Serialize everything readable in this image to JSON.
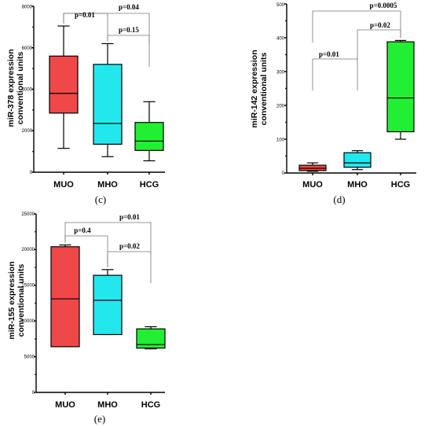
{
  "chart_data": [
    {
      "type": "box",
      "panel_label": "(c)",
      "ylabel_line1": "miR-378 expression",
      "ylabel_line2": "conventional units",
      "ylim": [
        0,
        8000
      ],
      "yticks": [
        "0",
        "2000",
        "4000",
        "6000",
        "8000"
      ],
      "categories": [
        "MUO",
        "MHO",
        "HCG"
      ],
      "colors": [
        "#f04848",
        "#22e8ee",
        "#22ee33"
      ],
      "boxes": [
        {
          "min": 1150,
          "q1": 2850,
          "median": 3800,
          "q3": 5600,
          "max": 7050
        },
        {
          "min": 750,
          "q1": 1350,
          "median": 2350,
          "q3": 5200,
          "max": 6200
        },
        {
          "min": 550,
          "q1": 1050,
          "median": 1500,
          "q3": 2400,
          "max": 3400
        }
      ],
      "comparisons": [
        {
          "from": 0,
          "to": 1,
          "label": "p=0.01"
        },
        {
          "from": 0,
          "to": 2,
          "label": "p=0.04"
        },
        {
          "from": 1,
          "to": 2,
          "label": "p=0.15"
        }
      ]
    },
    {
      "type": "box",
      "panel_label": "(d)",
      "ylabel_line1": "miR-142 expression",
      "ylabel_line2": "conventional units",
      "ylim": [
        0,
        500
      ],
      "yticks": [
        "0",
        "100",
        "200",
        "300",
        "400",
        "500"
      ],
      "categories": [
        "MUO",
        "MHO",
        "HCG"
      ],
      "colors": [
        "#f04848",
        "#22e8ee",
        "#22ee33"
      ],
      "boxes": [
        {
          "min": 5,
          "q1": 7,
          "median": 14,
          "q3": 23,
          "max": 30
        },
        {
          "min": 10,
          "q1": 17,
          "median": 30,
          "q3": 60,
          "max": 66
        },
        {
          "min": 100,
          "q1": 122,
          "median": 222,
          "q3": 388,
          "max": 392
        }
      ],
      "comparisons": [
        {
          "from": 0,
          "to": 1,
          "label": "p=0.01"
        },
        {
          "from": 0,
          "to": 2,
          "label": "p=0.0005"
        },
        {
          "from": 1,
          "to": 2,
          "label": "p=0.02"
        }
      ]
    },
    {
      "type": "box",
      "panel_label": "(e)",
      "ylabel_line1": "miR-155 expression",
      "ylabel_line2": "conventional units",
      "ylim": [
        0,
        25000
      ],
      "yticks": [
        "0",
        "5000",
        "10000",
        "15000",
        "20000",
        "25000"
      ],
      "categories": [
        "MUO",
        "MHO",
        "HCG"
      ],
      "colors": [
        "#f04848",
        "#22e8ee",
        "#22ee33"
      ],
      "boxes": [
        {
          "min": 6400,
          "q1": 6400,
          "median": 13100,
          "q3": 20400,
          "max": 20650
        },
        {
          "min": 8100,
          "q1": 8100,
          "median": 12900,
          "q3": 16400,
          "max": 17200
        },
        {
          "min": 6100,
          "q1": 6200,
          "median": 6700,
          "q3": 8900,
          "max": 9200
        }
      ],
      "comparisons": [
        {
          "from": 0,
          "to": 1,
          "label": "p=0.4"
        },
        {
          "from": 0,
          "to": 2,
          "label": "p=0.01"
        },
        {
          "from": 1,
          "to": 2,
          "label": "p=0.02"
        }
      ]
    }
  ]
}
